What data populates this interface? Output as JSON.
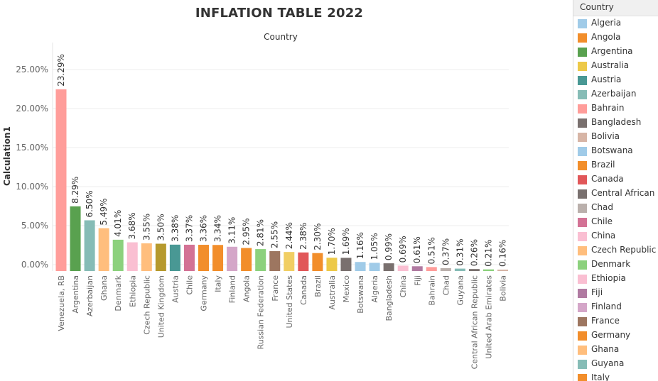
{
  "chart_data": {
    "type": "bar",
    "title": "INFLATION TABLE 2022",
    "column_header": "Country",
    "ylabel": "Calculation1",
    "ylim": [
      0,
      0.25
    ],
    "yticks": [
      "0.00%",
      "5.00%",
      "10.00%",
      "15.00%",
      "20.00%",
      "25.00%"
    ],
    "grid": true,
    "legend_position": "right",
    "categories": [
      "Venezuela, RB",
      "Argentina",
      "Azerbaijan",
      "Ghana",
      "Denmark",
      "Ethiopia",
      "Czech Republic",
      "United Kingdom",
      "Austria",
      "Chile",
      "Germany",
      "Italy",
      "Finland",
      "Angola",
      "Russian Federation",
      "France",
      "United States",
      "Canada",
      "Brazil",
      "Australia",
      "Mexico",
      "Botswana",
      "Algeria",
      "Bangladesh",
      "China",
      "Fiji",
      "Bahrain",
      "Chad",
      "Guyana",
      "Central African Republic",
      "United Arab Emirates",
      "Bolivia"
    ],
    "values": [
      0.2329,
      0.0829,
      0.065,
      0.0549,
      0.0401,
      0.0368,
      0.0355,
      0.035,
      0.0338,
      0.0337,
      0.0336,
      0.0334,
      0.0311,
      0.0295,
      0.0281,
      0.0255,
      0.0244,
      0.0238,
      0.023,
      0.017,
      0.0169,
      0.0116,
      0.0105,
      0.0099,
      0.0069,
      0.0061,
      0.0051,
      0.0037,
      0.0031,
      0.0026,
      0.0021,
      0.0016
    ],
    "value_labels": [
      "23.29%",
      "8.29%",
      "6.50%",
      "5.49%",
      "4.01%",
      "3.68%",
      "3.55%",
      "3.50%",
      "3.38%",
      "3.37%",
      "3.36%",
      "3.34%",
      "3.11%",
      "2.95%",
      "2.81%",
      "2.55%",
      "2.44%",
      "2.38%",
      "2.30%",
      "1.70%",
      "1.69%",
      "1.16%",
      "1.05%",
      "0.99%",
      "0.69%",
      "0.61%",
      "0.51%",
      "0.37%",
      "0.31%",
      "0.26%",
      "0.21%",
      "0.16%"
    ]
  },
  "colors": {
    "Algeria": "#a0cbe8",
    "Angola": "#f28e2b",
    "Argentina": "#59a14f",
    "Australia": "#edc948",
    "Austria": "#499894",
    "Azerbaijan": "#86bcb6",
    "Bahrain": "#ff9d9a",
    "Bangladesh": "#79706e",
    "Bolivia": "#d7b5a6",
    "Botswana": "#a0cbe8",
    "Brazil": "#f28e2b",
    "Canada": "#e15759",
    "Central African Republic": "#79706e",
    "Chad": "#bab0ac",
    "Chile": "#d37295",
    "China": "#fabfd2",
    "Czech Republic": "#ffbe7d",
    "Denmark": "#8cd17d",
    "Ethiopia": "#fabfd2",
    "Fiji": "#b07aa1",
    "Finland": "#d4a6c8",
    "France": "#9d7660",
    "Germany": "#f28e2b",
    "Ghana": "#ffbe7d",
    "Guyana": "#86bcb6",
    "Italy": "#f28e2b",
    "Venezuela, RB": "#ff9d9a",
    "United Kingdom": "#b6992d",
    "Russian Federation": "#8cd17d",
    "United States": "#f1ce63",
    "Mexico": "#79706e",
    "United Arab Emirates": "#8cd17d"
  },
  "legend": {
    "title": "Country",
    "items": [
      {
        "label": "Algeria",
        "color": "#a0cbe8"
      },
      {
        "label": "Angola",
        "color": "#f28e2b"
      },
      {
        "label": "Argentina",
        "color": "#59a14f"
      },
      {
        "label": "Australia",
        "color": "#edc948"
      },
      {
        "label": "Austria",
        "color": "#499894"
      },
      {
        "label": "Azerbaijan",
        "color": "#86bcb6"
      },
      {
        "label": "Bahrain",
        "color": "#ff9d9a"
      },
      {
        "label": "Bangladesh",
        "color": "#79706e"
      },
      {
        "label": "Bolivia",
        "color": "#d7b5a6"
      },
      {
        "label": "Botswana",
        "color": "#a0cbe8"
      },
      {
        "label": "Brazil",
        "color": "#f28e2b"
      },
      {
        "label": "Canada",
        "color": "#e15759"
      },
      {
        "label": "Central African R",
        "color": "#79706e"
      },
      {
        "label": "Chad",
        "color": "#bab0ac"
      },
      {
        "label": "Chile",
        "color": "#d37295"
      },
      {
        "label": "China",
        "color": "#fabfd2"
      },
      {
        "label": "Czech Republic",
        "color": "#ffbe7d"
      },
      {
        "label": "Denmark",
        "color": "#8cd17d"
      },
      {
        "label": "Ethiopia",
        "color": "#fabfd2"
      },
      {
        "label": "Fiji",
        "color": "#b07aa1"
      },
      {
        "label": "Finland",
        "color": "#d4a6c8"
      },
      {
        "label": "France",
        "color": "#9d7660"
      },
      {
        "label": "Germany",
        "color": "#f28e2b"
      },
      {
        "label": "Ghana",
        "color": "#ffbe7d"
      },
      {
        "label": "Guyana",
        "color": "#86bcb6"
      },
      {
        "label": "Italy",
        "color": "#f28e2b"
      }
    ]
  }
}
